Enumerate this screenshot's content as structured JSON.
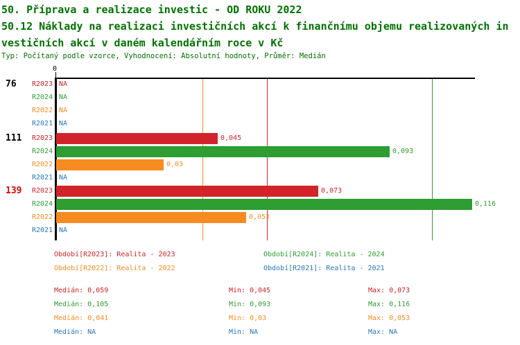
{
  "header": {
    "title": "50. Příprava a realizace investic - OD ROKU 2022",
    "subtitle_lines": [
      "50.12 Náklady na realizaci investičních akcí k finančnímu objemu realizovaných in",
      "vestičních akcí v daném kalendářním roce v Kč"
    ],
    "meta": "Typ: Počítaný podle vzorce, Vyhodnocení: Absolutní hodnoty, Průměr: Medián"
  },
  "colors": {
    "r2023": "#D2232A",
    "r2024": "#2E9D32",
    "r2022": "#F68B1F",
    "r2021": "#2878B8",
    "highlight_group": "#E00000",
    "axis": "#000000",
    "title_green": "#007200"
  },
  "chart_data": {
    "type": "bar",
    "orientation": "horizontal",
    "title": "50.12 Náklady na realizaci investičních akcí k finančnímu objemu realizovaných investičních akcí v daném kalendářním roce v Kč",
    "xlabel": "",
    "ylabel": "",
    "axis": {
      "zero_label": "0",
      "xlim": [
        0,
        0.117
      ],
      "grid": false
    },
    "series_order": [
      "R2023",
      "R2024",
      "R2022",
      "R2021"
    ],
    "groups": [
      {
        "label": "76",
        "label_color": "#000000",
        "rows": [
          {
            "period": "R2023",
            "value": null,
            "display": "NA",
            "color": "#D2232A"
          },
          {
            "period": "R2024",
            "value": null,
            "display": "NA",
            "color": "#2E9D32"
          },
          {
            "period": "R2022",
            "value": null,
            "display": "NA",
            "color": "#F68B1F"
          },
          {
            "period": "R2021",
            "value": null,
            "display": "NA",
            "color": "#2878B8"
          }
        ]
      },
      {
        "label": "111",
        "label_color": "#000000",
        "rows": [
          {
            "period": "R2023",
            "value": 0.045,
            "display": "0,045",
            "color": "#D2232A"
          },
          {
            "period": "R2024",
            "value": 0.093,
            "display": "0,093",
            "color": "#2E9D32"
          },
          {
            "period": "R2022",
            "value": 0.03,
            "display": "0,03",
            "color": "#F68B1F"
          },
          {
            "period": "R2021",
            "value": null,
            "display": "NA",
            "color": "#2878B8"
          }
        ]
      },
      {
        "label": "139",
        "label_color": "#E00000",
        "rows": [
          {
            "period": "R2023",
            "value": 0.073,
            "display": "0,073",
            "color": "#D2232A"
          },
          {
            "period": "R2024",
            "value": 0.116,
            "display": "0,116",
            "color": "#2E9D32"
          },
          {
            "period": "R2022",
            "value": 0.053,
            "display": "0,053",
            "color": "#F68B1F"
          },
          {
            "period": "R2021",
            "value": null,
            "display": "NA",
            "color": "#2878B8"
          }
        ]
      }
    ],
    "median_lines": [
      {
        "series": "R2022",
        "value": 0.041,
        "color": "#F68B1F"
      },
      {
        "series": "R2023",
        "value": 0.059,
        "color": "#D2232A"
      },
      {
        "series": "R2024",
        "value": 0.105,
        "color": "#2E9D32"
      }
    ],
    "legend": [
      {
        "label": "Období[R2023]: Realita - 2023",
        "color": "#D2232A"
      },
      {
        "label": "Období[R2024]: Realita - 2024",
        "color": "#2E9D32"
      },
      {
        "label": "Období[R2022]: Realita - 2022",
        "color": "#F68B1F"
      },
      {
        "label": "Období[R2021]: Realita - 2021",
        "color": "#2878B8"
      }
    ],
    "stats": [
      {
        "color": "#D2232A",
        "median": "Medián: 0,059",
        "min": "Min: 0,045",
        "max": "Max: 0,073"
      },
      {
        "color": "#2E9D32",
        "median": "Medián: 0,105",
        "min": "Min: 0,093",
        "max": "Max: 0,116"
      },
      {
        "color": "#F68B1F",
        "median": "Medián: 0,041",
        "min": "Min: 0,03",
        "max": "Max: 0,053"
      },
      {
        "color": "#2878B8",
        "median": "Medián: NA",
        "min": "Min: NA",
        "max": "Max: NA"
      }
    ]
  }
}
